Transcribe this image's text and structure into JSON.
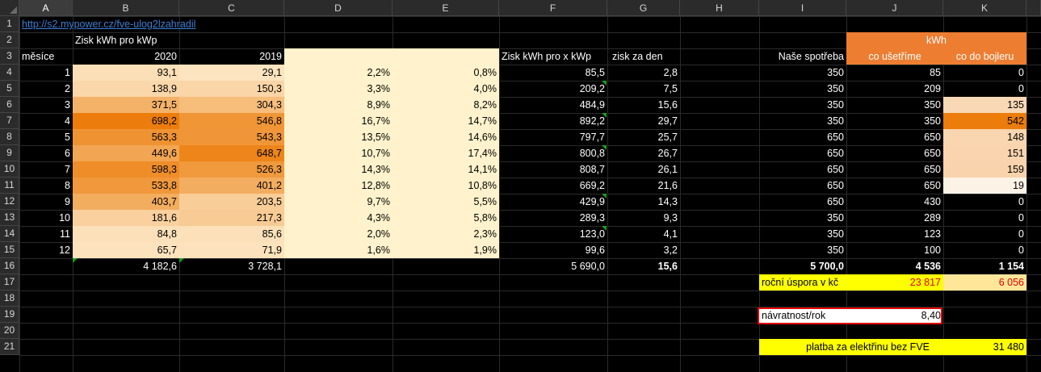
{
  "colors": {
    "accent_orange": "#ed7d31",
    "yellow": "#ffff00",
    "red_text": "#e00000",
    "cream": "#fff2cc",
    "red_border": "#e00000"
  },
  "columns": [
    "A",
    "B",
    "C",
    "D",
    "E",
    "F",
    "G",
    "H",
    "I",
    "J",
    "K"
  ],
  "rows": [
    "1",
    "2",
    "3",
    "4",
    "5",
    "6",
    "7",
    "8",
    "9",
    "10",
    "11",
    "12",
    "13",
    "14",
    "15",
    "16",
    "17",
    "18",
    "19",
    "20",
    "21"
  ],
  "link": "http://s2.mypower.cz/fve-ulog2lzahradil",
  "header_zisk": "Zisk kWh pro kWp",
  "header_mesice": "měsíce",
  "header_2020": "2020",
  "header_2019": "2019",
  "header_zisk_x": "Zisk kWh pro x kWp",
  "header_den": "zisk za den",
  "header_spotreba": "Naše spotřeba",
  "header_kwh": "kWh",
  "header_usetrime": "co ušetříme",
  "header_bojler": "co do bojleru",
  "months": [
    {
      "m": "1",
      "y2020": "93,1",
      "y2019": "29,1",
      "p2020": "2,2%",
      "p2019": "0,8%",
      "fx": "85,5",
      "day": "2,8",
      "spot": "350",
      "save": "85",
      "boil": "0"
    },
    {
      "m": "2",
      "y2020": "138,9",
      "y2019": "150,3",
      "p2020": "3,3%",
      "p2019": "4,0%",
      "fx": "209,2",
      "day": "7,5",
      "spot": "350",
      "save": "209",
      "boil": "0"
    },
    {
      "m": "3",
      "y2020": "371,5",
      "y2019": "304,3",
      "p2020": "8,9%",
      "p2019": "8,2%",
      "fx": "484,9",
      "day": "15,6",
      "spot": "350",
      "save": "350",
      "boil": "135"
    },
    {
      "m": "4",
      "y2020": "698,2",
      "y2019": "546,8",
      "p2020": "16,7%",
      "p2019": "14,7%",
      "fx": "892,2",
      "day": "29,7",
      "spot": "350",
      "save": "350",
      "boil": "542"
    },
    {
      "m": "5",
      "y2020": "563,3",
      "y2019": "543,3",
      "p2020": "13,5%",
      "p2019": "14,6%",
      "fx": "797,7",
      "day": "25,7",
      "spot": "650",
      "save": "650",
      "boil": "148"
    },
    {
      "m": "6",
      "y2020": "449,6",
      "y2019": "648,7",
      "p2020": "10,7%",
      "p2019": "17,4%",
      "fx": "800,8",
      "day": "26,7",
      "spot": "650",
      "save": "650",
      "boil": "151"
    },
    {
      "m": "7",
      "y2020": "598,3",
      "y2019": "526,3",
      "p2020": "14,3%",
      "p2019": "14,1%",
      "fx": "808,7",
      "day": "26,1",
      "spot": "650",
      "save": "650",
      "boil": "159"
    },
    {
      "m": "8",
      "y2020": "533,8",
      "y2019": "401,2",
      "p2020": "12,8%",
      "p2019": "10,8%",
      "fx": "669,2",
      "day": "21,6",
      "spot": "650",
      "save": "650",
      "boil": "19"
    },
    {
      "m": "9",
      "y2020": "403,7",
      "y2019": "203,5",
      "p2020": "9,7%",
      "p2019": "5,5%",
      "fx": "429,9",
      "day": "14,3",
      "spot": "650",
      "save": "430",
      "boil": "0"
    },
    {
      "m": "10",
      "y2020": "181,6",
      "y2019": "217,3",
      "p2020": "4,3%",
      "p2019": "5,8%",
      "fx": "289,3",
      "day": "9,3",
      "spot": "350",
      "save": "289",
      "boil": "0"
    },
    {
      "m": "11",
      "y2020": "84,8",
      "y2019": "85,6",
      "p2020": "2,0%",
      "p2019": "2,3%",
      "fx": "123,0",
      "day": "4,1",
      "spot": "350",
      "save": "123",
      "boil": "0"
    },
    {
      "m": "12",
      "y2020": "65,7",
      "y2019": "71,9",
      "p2020": "1,6%",
      "p2019": "1,9%",
      "fx": "99,6",
      "day": "3,2",
      "spot": "350",
      "save": "100",
      "boil": "0"
    }
  ],
  "totals": {
    "y2020": "4 182,6",
    "y2019": "3 728,1",
    "fx": "5 690,0",
    "day": "15,6",
    "spot": "5 700,0",
    "save": "4 536",
    "boil": "1 154"
  },
  "rocni_label": "roční úspora v kč",
  "rocni_save": "23 817",
  "rocni_boil": "6 056",
  "navratnost_label": "návratnost/rok",
  "navratnost_value": "8,40",
  "platba_label": "platba za elektřinu bez FVE",
  "platba_value": "31 480"
}
